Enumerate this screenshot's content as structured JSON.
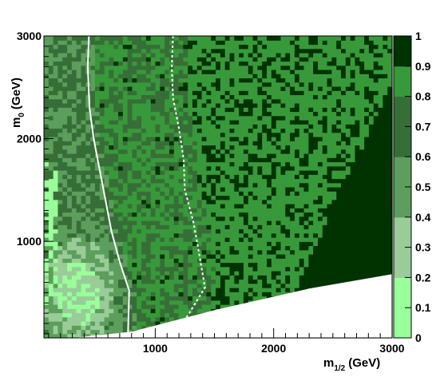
{
  "chart_data": {
    "type": "heatmap",
    "title": "",
    "xlabel": "m",
    "xlabel_sub": "1/2",
    "xlabel_unit": "(GeV)",
    "ylabel": "m",
    "ylabel_sub": "0",
    "ylabel_unit": "(GeV)",
    "xlim": [
      60,
      3000
    ],
    "ylim": [
      60,
      3000
    ],
    "x_ticks": [
      1000,
      2000,
      3000
    ],
    "x_tick_labels": [
      "1000",
      "2000",
      "3000"
    ],
    "y_ticks": [
      1000,
      2000,
      3000
    ],
    "y_tick_labels": [
      "1000",
      "2000",
      "3000"
    ],
    "colorbar": {
      "range": [
        0,
        1
      ],
      "ticks": [
        0,
        0.1,
        0.2,
        0.3,
        0.4,
        0.5,
        0.6,
        0.7,
        0.8,
        0.9,
        1
      ],
      "tick_labels": [
        "0",
        "0.1",
        "0.2",
        "0.3",
        "0.4",
        "0.5",
        "0.6",
        "0.7",
        "0.8",
        "0.9",
        "1"
      ],
      "bands": [
        {
          "from": 0.0,
          "to": 0.2,
          "color": "#99ff99"
        },
        {
          "from": 0.2,
          "to": 0.4,
          "color": "#99cc99"
        },
        {
          "from": 0.4,
          "to": 0.6,
          "color": "#5c9e5c"
        },
        {
          "from": 0.6,
          "to": 0.8,
          "color": "#376e37"
        },
        {
          "from": 0.8,
          "to": 0.9,
          "color": "#38993a"
        },
        {
          "from": 0.9,
          "to": 1.0,
          "color": "#003300"
        }
      ]
    },
    "excluded_region": {
      "color": "#ffffff",
      "boundary": [
        [
          60,
          60
        ],
        [
          300,
          60
        ],
        [
          800,
          120
        ],
        [
          1500,
          330
        ],
        [
          2300,
          540
        ],
        [
          3000,
          680
        ]
      ]
    },
    "heatmap_zones": [
      {
        "name": "dark-upper-right",
        "value": 0.95
      },
      {
        "name": "bright-middle",
        "value": 0.85
      },
      {
        "name": "mid-left",
        "value": 0.7
      },
      {
        "name": "low-corner",
        "value": 0.3
      }
    ],
    "contours": [
      {
        "style": "solid",
        "color": "#ffffff",
        "points": [
          [
            440,
            3000
          ],
          [
            430,
            2700
          ],
          [
            445,
            2300
          ],
          [
            480,
            2000
          ],
          [
            530,
            1700
          ],
          [
            580,
            1400
          ],
          [
            630,
            1100
          ],
          [
            700,
            800
          ],
          [
            780,
            520
          ],
          [
            770,
            100
          ]
        ]
      },
      {
        "style": "dashed",
        "color": "#ffffff",
        "points": [
          [
            1150,
            3000
          ],
          [
            1140,
            2700
          ],
          [
            1150,
            2400
          ],
          [
            1200,
            2100
          ],
          [
            1240,
            1800
          ],
          [
            1250,
            1500
          ],
          [
            1320,
            1200
          ],
          [
            1360,
            950
          ],
          [
            1420,
            550
          ],
          [
            1260,
            250
          ]
        ]
      }
    ]
  }
}
